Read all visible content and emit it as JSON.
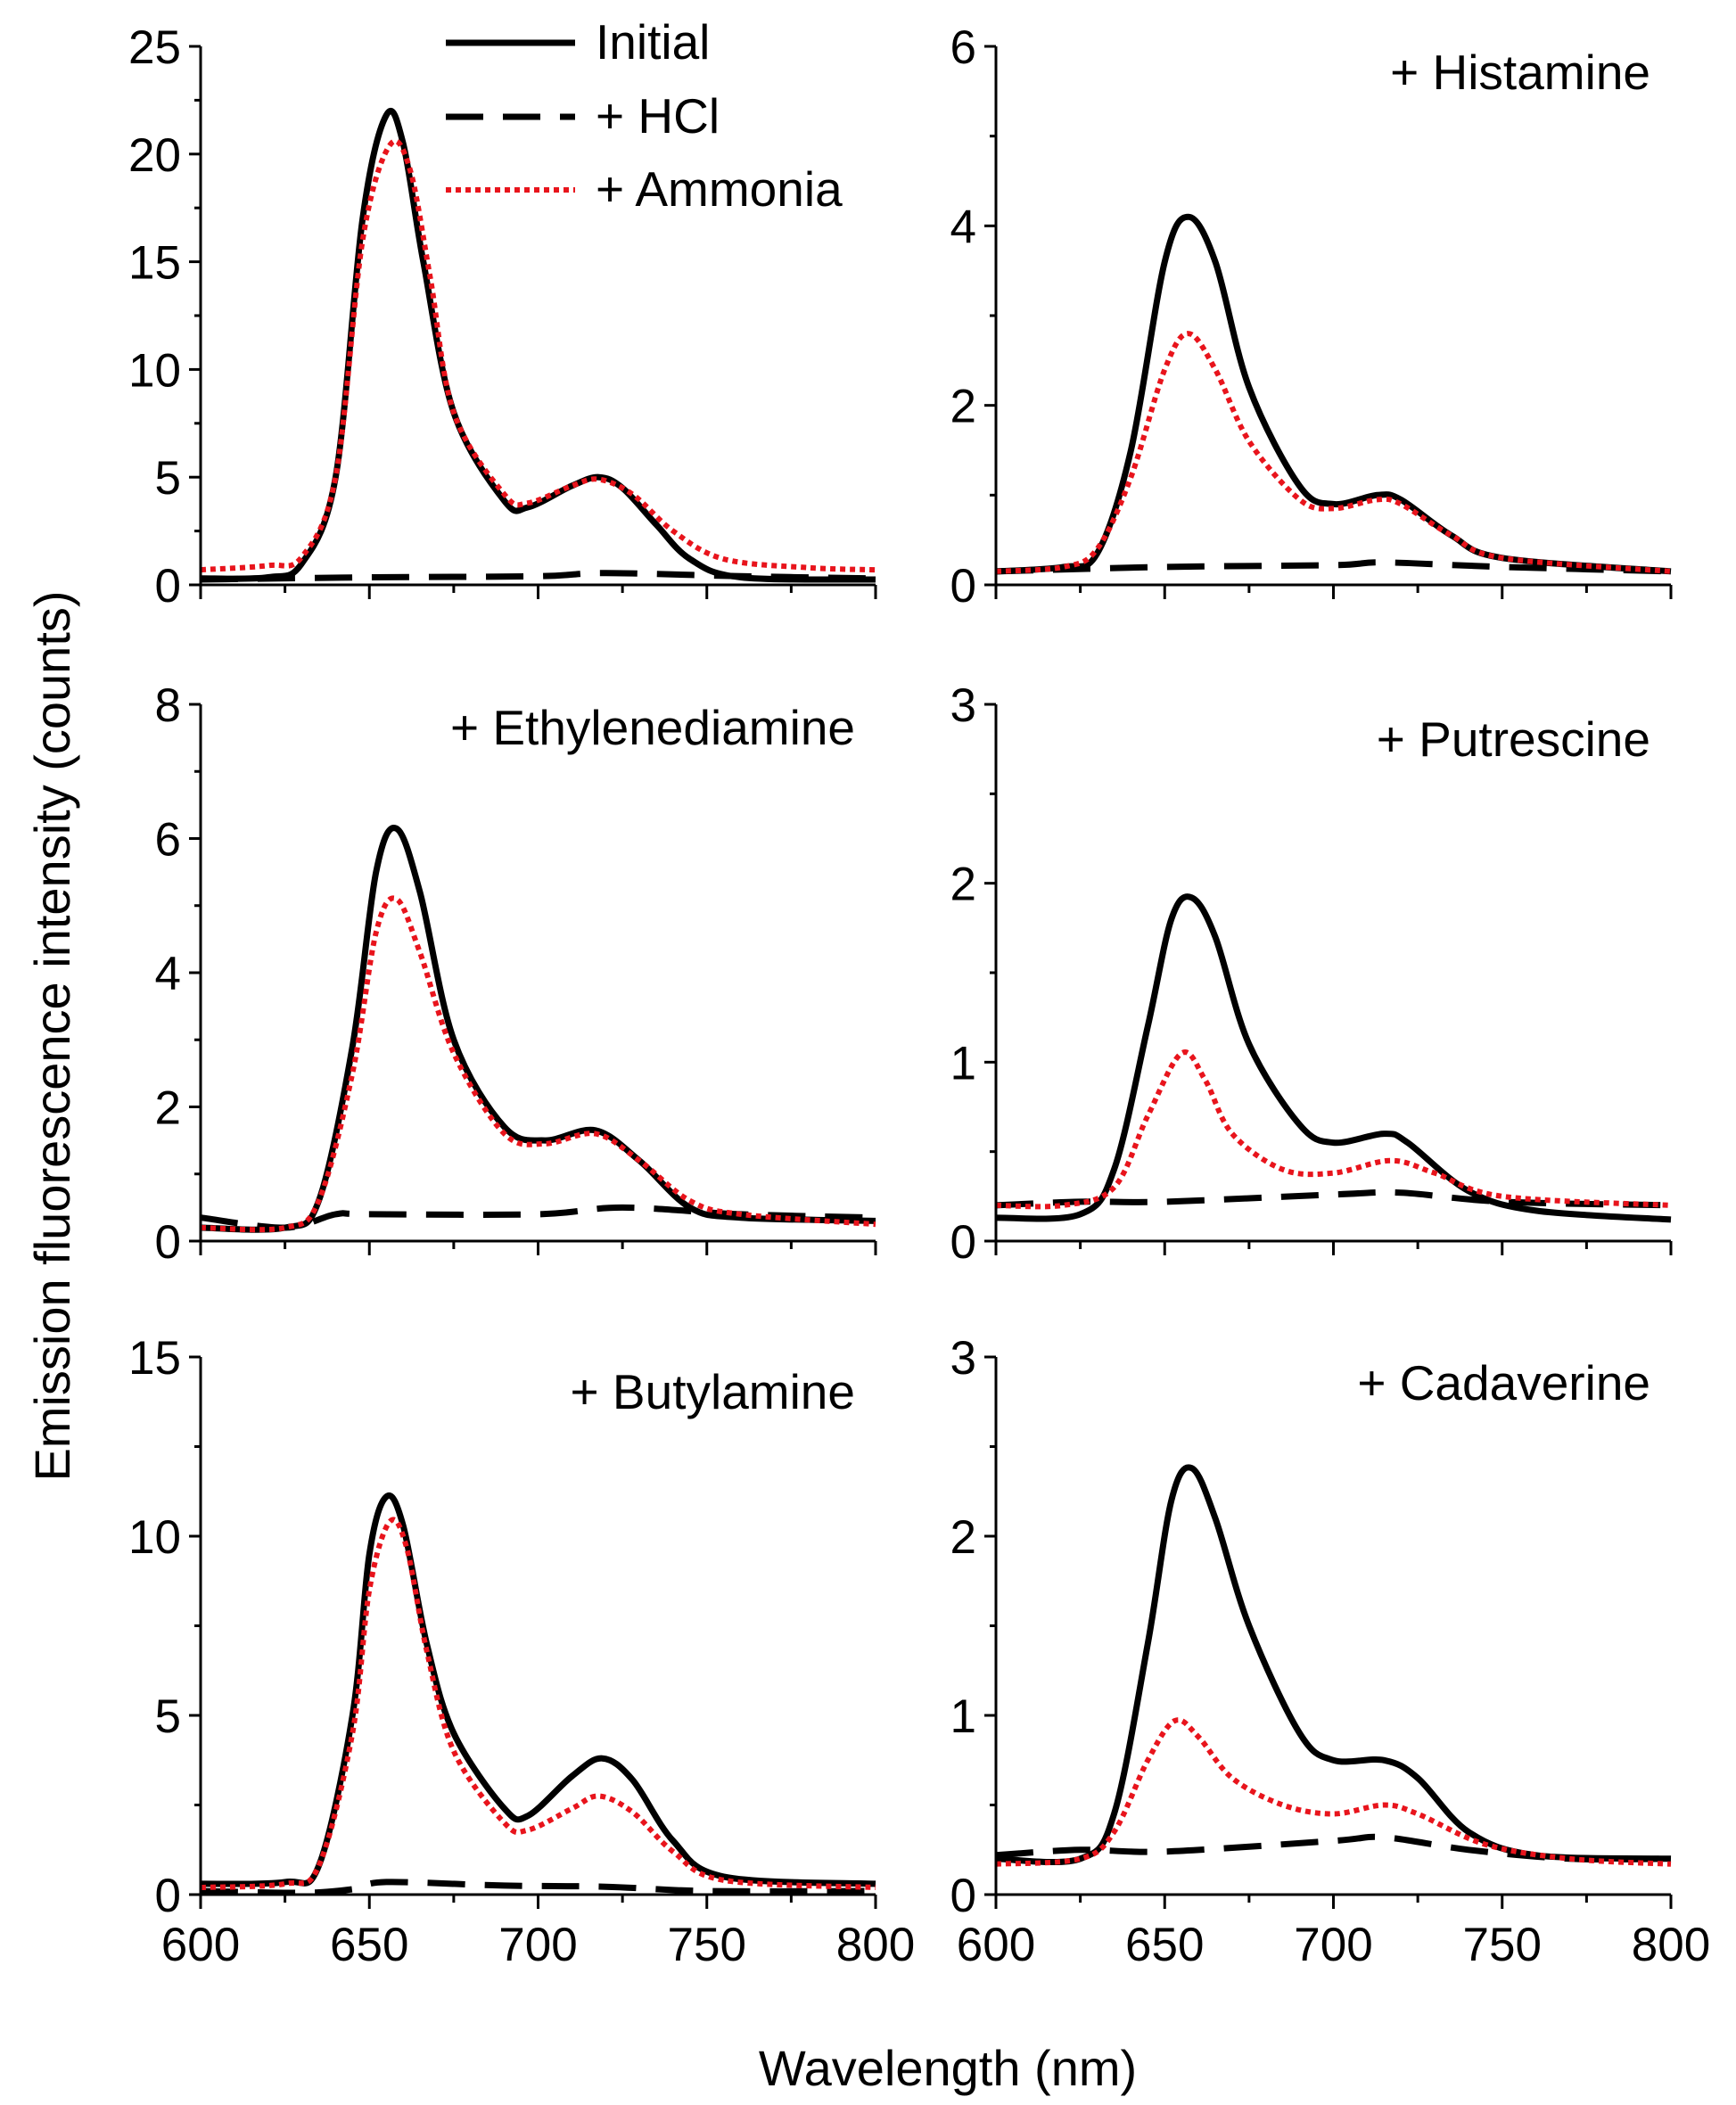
{
  "figure": {
    "ylabel": "Emission fluorescence intensity (counts)",
    "xlabel": "Wavelength (nm)"
  },
  "legend": {
    "items": [
      {
        "label": "Initial",
        "style": "solid",
        "color": "#000000"
      },
      {
        "label": "+ HCl",
        "style": "dashed",
        "color": "#000000"
      },
      {
        "label": "+ Ammonia",
        "style": "dotted",
        "color": "#e8141c"
      }
    ]
  },
  "chart_data": [
    {
      "type": "line",
      "panel": "top-left",
      "label": "",
      "xlim": [
        600,
        800
      ],
      "ylim": [
        0,
        25
      ],
      "xticks": [
        "600",
        "650",
        "700",
        "750",
        "800"
      ],
      "yticks": [
        "0",
        "5",
        "10",
        "15",
        "20",
        "25"
      ],
      "series": [
        {
          "name": "Initial",
          "points": [
            [
              600,
              0.3
            ],
            [
              620,
              0.35
            ],
            [
              630,
              1.0
            ],
            [
              640,
              5
            ],
            [
              648,
              17
            ],
            [
              655,
              21.8
            ],
            [
              660,
              20.5
            ],
            [
              666,
              15
            ],
            [
              675,
              8
            ],
            [
              690,
              3.9
            ],
            [
              697,
              3.6
            ],
            [
              710,
              4.6
            ],
            [
              718,
              5.0
            ],
            [
              725,
              4.5
            ],
            [
              735,
              2.8
            ],
            [
              745,
              1.2
            ],
            [
              760,
              0.35
            ],
            [
              800,
              0.25
            ]
          ]
        },
        {
          "name": "+ HCl",
          "points": [
            [
              600,
              0.25
            ],
            [
              650,
              0.35
            ],
            [
              700,
              0.4
            ],
            [
              720,
              0.55
            ],
            [
              760,
              0.4
            ],
            [
              800,
              0.3
            ]
          ]
        },
        {
          "name": "+ Ammonia",
          "points": [
            [
              600,
              0.7
            ],
            [
              620,
              0.9
            ],
            [
              630,
              1.3
            ],
            [
              640,
              5
            ],
            [
              648,
              16
            ],
            [
              656,
              20.4
            ],
            [
              662,
              19.3
            ],
            [
              668,
              14.3
            ],
            [
              675,
              8
            ],
            [
              690,
              4.2
            ],
            [
              697,
              3.8
            ],
            [
              710,
              4.6
            ],
            [
              718,
              4.9
            ],
            [
              728,
              4.2
            ],
            [
              740,
              2.5
            ],
            [
              755,
              1.2
            ],
            [
              780,
              0.8
            ],
            [
              800,
              0.7
            ]
          ]
        }
      ]
    },
    {
      "type": "line",
      "panel": "top-right",
      "label": "+ Histamine",
      "xlim": [
        600,
        800
      ],
      "ylim": [
        0,
        6
      ],
      "xticks": [
        "600",
        "650",
        "700",
        "750",
        "800"
      ],
      "yticks": [
        "0",
        "2",
        "4",
        "6"
      ],
      "series": [
        {
          "name": "Initial",
          "points": [
            [
              600,
              0.15
            ],
            [
              620,
              0.2
            ],
            [
              630,
              0.35
            ],
            [
              640,
              1.5
            ],
            [
              650,
              3.6
            ],
            [
              657,
              4.1
            ],
            [
              665,
              3.6
            ],
            [
              675,
              2.2
            ],
            [
              690,
              1.1
            ],
            [
              700,
              0.9
            ],
            [
              713,
              1.0
            ],
            [
              720,
              0.95
            ],
            [
              735,
              0.55
            ],
            [
              750,
              0.3
            ],
            [
              800,
              0.15
            ]
          ]
        },
        {
          "name": "+ HCl",
          "points": [
            [
              600,
              0.15
            ],
            [
              650,
              0.2
            ],
            [
              700,
              0.22
            ],
            [
              715,
              0.25
            ],
            [
              750,
              0.2
            ],
            [
              800,
              0.15
            ]
          ]
        },
        {
          "name": "+ Ammonia",
          "points": [
            [
              600,
              0.15
            ],
            [
              620,
              0.2
            ],
            [
              630,
              0.4
            ],
            [
              640,
              1.2
            ],
            [
              650,
              2.4
            ],
            [
              657,
              2.8
            ],
            [
              665,
              2.4
            ],
            [
              675,
              1.6
            ],
            [
              690,
              0.95
            ],
            [
              700,
              0.85
            ],
            [
              713,
              0.95
            ],
            [
              720,
              0.9
            ],
            [
              735,
              0.55
            ],
            [
              750,
              0.3
            ],
            [
              800,
              0.15
            ]
          ]
        }
      ]
    },
    {
      "type": "line",
      "panel": "middle-left",
      "label": "+ Ethylenediamine",
      "xlim": [
        600,
        800
      ],
      "ylim": [
        0,
        8
      ],
      "xticks": [
        "600",
        "650",
        "700",
        "750",
        "800"
      ],
      "yticks": [
        "0",
        "2",
        "4",
        "6",
        "8"
      ],
      "series": [
        {
          "name": "Initial",
          "points": [
            [
              600,
              0.2
            ],
            [
              625,
              0.2
            ],
            [
              635,
              0.6
            ],
            [
              645,
              2.9
            ],
            [
              652,
              5.5
            ],
            [
              658,
              6.15
            ],
            [
              665,
              5.2
            ],
            [
              675,
              3.0
            ],
            [
              690,
              1.7
            ],
            [
              702,
              1.5
            ],
            [
              717,
              1.65
            ],
            [
              730,
              1.2
            ],
            [
              745,
              0.5
            ],
            [
              760,
              0.35
            ],
            [
              800,
              0.3
            ]
          ]
        },
        {
          "name": "+ HCl",
          "points": [
            [
              600,
              0.35
            ],
            [
              625,
              0.2
            ],
            [
              640,
              0.4
            ],
            [
              650,
              0.4
            ],
            [
              700,
              0.4
            ],
            [
              725,
              0.5
            ],
            [
              760,
              0.4
            ],
            [
              800,
              0.35
            ]
          ]
        },
        {
          "name": "+ Ammonia",
          "points": [
            [
              600,
              0.2
            ],
            [
              625,
              0.2
            ],
            [
              635,
              0.6
            ],
            [
              645,
              2.5
            ],
            [
              652,
              4.6
            ],
            [
              658,
              5.1
            ],
            [
              665,
              4.3
            ],
            [
              675,
              2.8
            ],
            [
              690,
              1.6
            ],
            [
              702,
              1.45
            ],
            [
              717,
              1.6
            ],
            [
              730,
              1.2
            ],
            [
              745,
              0.6
            ],
            [
              760,
              0.4
            ],
            [
              800,
              0.25
            ]
          ]
        }
      ]
    },
    {
      "type": "line",
      "panel": "middle-right",
      "label": "+ Putrescine",
      "xlim": [
        600,
        800
      ],
      "ylim": [
        0,
        3
      ],
      "xticks": [
        "600",
        "650",
        "700",
        "750",
        "800"
      ],
      "yticks": [
        "0",
        "1",
        "2",
        "3"
      ],
      "series": [
        {
          "name": "Initial",
          "points": [
            [
              600,
              0.13
            ],
            [
              625,
              0.15
            ],
            [
              635,
              0.4
            ],
            [
              645,
              1.2
            ],
            [
              652,
              1.8
            ],
            [
              658,
              1.92
            ],
            [
              665,
              1.7
            ],
            [
              675,
              1.1
            ],
            [
              690,
              0.65
            ],
            [
              700,
              0.55
            ],
            [
              715,
              0.6
            ],
            [
              722,
              0.55
            ],
            [
              740,
              0.28
            ],
            [
              760,
              0.17
            ],
            [
              800,
              0.12
            ]
          ]
        },
        {
          "name": "+ HCl",
          "points": [
            [
              600,
              0.2
            ],
            [
              625,
              0.22
            ],
            [
              650,
              0.22
            ],
            [
              700,
              0.26
            ],
            [
              720,
              0.27
            ],
            [
              750,
              0.22
            ],
            [
              800,
              0.2
            ]
          ]
        },
        {
          "name": "+ Ammonia",
          "points": [
            [
              600,
              0.2
            ],
            [
              620,
              0.2
            ],
            [
              635,
              0.3
            ],
            [
              645,
              0.7
            ],
            [
              655,
              1.05
            ],
            [
              662,
              0.9
            ],
            [
              670,
              0.6
            ],
            [
              685,
              0.4
            ],
            [
              700,
              0.38
            ],
            [
              717,
              0.45
            ],
            [
              730,
              0.38
            ],
            [
              750,
              0.25
            ],
            [
              800,
              0.2
            ]
          ]
        }
      ]
    },
    {
      "type": "line",
      "panel": "bottom-left",
      "label": "+ Butylamine",
      "xlim": [
        600,
        800
      ],
      "ylim": [
        0,
        15
      ],
      "xticks": [
        "600",
        "650",
        "700",
        "750",
        "800"
      ],
      "yticks": [
        "0",
        "5",
        "10",
        "15"
      ],
      "series": [
        {
          "name": "Initial",
          "points": [
            [
              600,
              0.3
            ],
            [
              625,
              0.35
            ],
            [
              635,
              0.8
            ],
            [
              645,
              5
            ],
            [
              650,
              9.5
            ],
            [
              655,
              11.1
            ],
            [
              660,
              10.3
            ],
            [
              667,
              7
            ],
            [
              675,
              4.5
            ],
            [
              690,
              2.4
            ],
            [
              697,
              2.2
            ],
            [
              710,
              3.3
            ],
            [
              719,
              3.8
            ],
            [
              728,
              3.2
            ],
            [
              740,
              1.5
            ],
            [
              755,
              0.5
            ],
            [
              800,
              0.3
            ]
          ]
        },
        {
          "name": "+ HCl",
          "points": [
            [
              600,
              0.1
            ],
            [
              630,
              0.05
            ],
            [
              645,
              0.15
            ],
            [
              655,
              0.35
            ],
            [
              690,
              0.25
            ],
            [
              720,
              0.22
            ],
            [
              750,
              0.1
            ],
            [
              800,
              0.1
            ]
          ]
        },
        {
          "name": "+ Ammonia",
          "points": [
            [
              600,
              0.2
            ],
            [
              625,
              0.3
            ],
            [
              635,
              0.8
            ],
            [
              645,
              4.5
            ],
            [
              650,
              8.5
            ],
            [
              656,
              10.4
            ],
            [
              661,
              9.7
            ],
            [
              667,
              6.8
            ],
            [
              675,
              4
            ],
            [
              690,
              2.0
            ],
            [
              697,
              1.8
            ],
            [
              710,
              2.4
            ],
            [
              718,
              2.75
            ],
            [
              728,
              2.3
            ],
            [
              740,
              1.2
            ],
            [
              755,
              0.4
            ],
            [
              800,
              0.2
            ]
          ]
        }
      ]
    },
    {
      "type": "line",
      "panel": "bottom-right",
      "label": "+ Cadaverine",
      "xlim": [
        600,
        800
      ],
      "ylim": [
        0,
        3
      ],
      "xticks": [
        "600",
        "650",
        "700",
        "750",
        "800"
      ],
      "yticks": [
        "0",
        "1",
        "2",
        "3"
      ],
      "series": [
        {
          "name": "Initial",
          "points": [
            [
              600,
              0.2
            ],
            [
              625,
              0.2
            ],
            [
              635,
              0.45
            ],
            [
              645,
              1.4
            ],
            [
              652,
              2.2
            ],
            [
              658,
              2.38
            ],
            [
              665,
              2.1
            ],
            [
              675,
              1.5
            ],
            [
              690,
              0.9
            ],
            [
              700,
              0.75
            ],
            [
              715,
              0.75
            ],
            [
              725,
              0.65
            ],
            [
              740,
              0.35
            ],
            [
              760,
              0.22
            ],
            [
              800,
              0.2
            ]
          ]
        },
        {
          "name": "+ HCl",
          "points": [
            [
              600,
              0.22
            ],
            [
              625,
              0.25
            ],
            [
              650,
              0.24
            ],
            [
              700,
              0.3
            ],
            [
              715,
              0.32
            ],
            [
              740,
              0.25
            ],
            [
              770,
              0.2
            ],
            [
              800,
              0.2
            ]
          ]
        },
        {
          "name": "+ Ammonia",
          "points": [
            [
              600,
              0.17
            ],
            [
              625,
              0.2
            ],
            [
              635,
              0.35
            ],
            [
              645,
              0.75
            ],
            [
              653,
              0.97
            ],
            [
              660,
              0.88
            ],
            [
              670,
              0.65
            ],
            [
              685,
              0.5
            ],
            [
              700,
              0.45
            ],
            [
              715,
              0.5
            ],
            [
              725,
              0.45
            ],
            [
              745,
              0.28
            ],
            [
              770,
              0.2
            ],
            [
              800,
              0.17
            ]
          ]
        }
      ]
    }
  ]
}
